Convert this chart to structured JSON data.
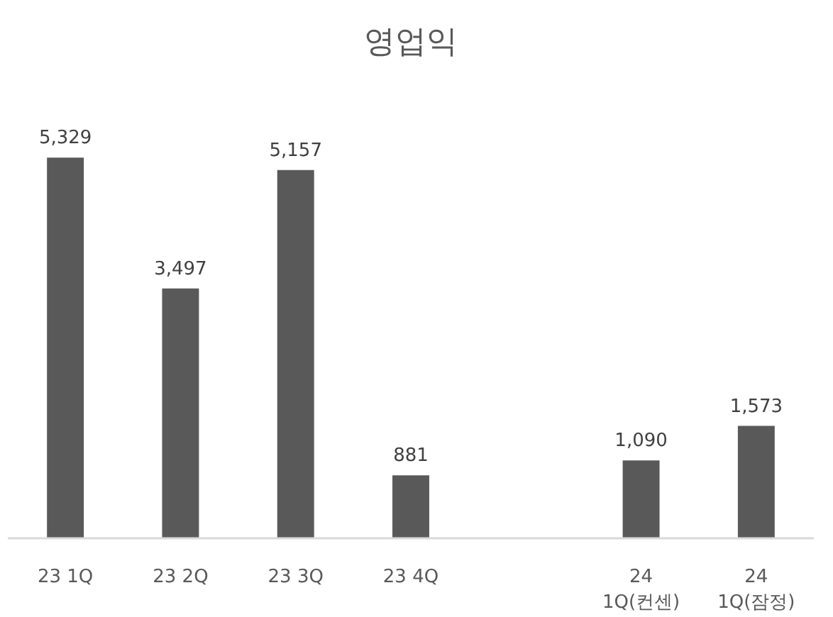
{
  "chart_data": {
    "type": "bar",
    "title": "영업익",
    "categories": [
      "23 1Q",
      "23 2Q",
      "23 3Q",
      "23 4Q",
      null,
      "24\n1Q(컨센)",
      "24\n1Q(잠정)"
    ],
    "values": [
      5329,
      3497,
      5157,
      881,
      null,
      1090,
      1573
    ],
    "value_labels": [
      "5,329",
      "3,497",
      "5,157",
      "881",
      null,
      "1,090",
      "1,573"
    ],
    "color": "#595959"
  }
}
